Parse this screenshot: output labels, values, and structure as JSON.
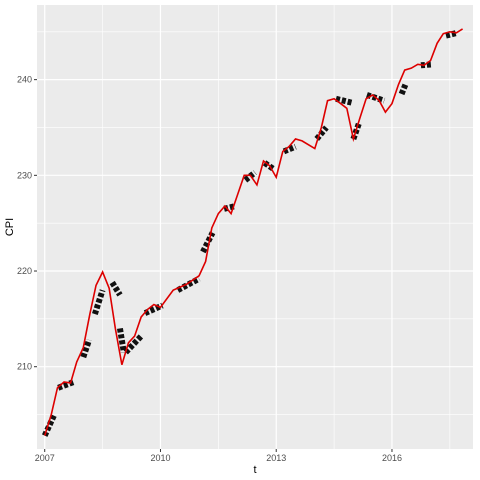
{
  "chart_data": {
    "type": "line",
    "xlabel": "t",
    "ylabel": "CPI",
    "xlim": [
      2006.8,
      2018.1
    ],
    "ylim": [
      201.4,
      247.8
    ],
    "x_ticks": [
      2007,
      2010,
      2013,
      2016
    ],
    "x_tick_labels": [
      "2007",
      "2010",
      "2013",
      "2016"
    ],
    "y_ticks": [
      210,
      220,
      230,
      240
    ],
    "y_tick_labels": [
      "210",
      "220",
      "230",
      "240"
    ],
    "grid": true,
    "background_color": "#ebebeb",
    "grid_color": "#ffffff",
    "series": [
      {
        "style": "red-line",
        "color": "#dd0000",
        "x": [
          2007.0,
          2007.17,
          2007.33,
          2007.5,
          2007.67,
          2007.83,
          2008.0,
          2008.17,
          2008.33,
          2008.5,
          2008.67,
          2008.83,
          2009.0,
          2009.17,
          2009.33,
          2009.5,
          2009.67,
          2009.83,
          2010.0,
          2010.33,
          2010.67,
          2011.0,
          2011.17,
          2011.33,
          2011.5,
          2011.67,
          2011.83,
          2012.0,
          2012.17,
          2012.33,
          2012.5,
          2012.67,
          2012.83,
          2013.0,
          2013.17,
          2013.33,
          2013.5,
          2013.67,
          2014.0,
          2014.17,
          2014.33,
          2014.5,
          2014.67,
          2014.83,
          2015.0,
          2015.17,
          2015.33,
          2015.5,
          2015.67,
          2015.83,
          2016.0,
          2016.17,
          2016.33,
          2016.5,
          2016.67,
          2016.83,
          2017.0,
          2017.17,
          2017.33,
          2017.5,
          2017.67,
          2017.83
        ],
        "y": [
          202.8,
          205.0,
          207.8,
          208.4,
          208.3,
          210.5,
          212.0,
          215.5,
          218.5,
          219.9,
          218.2,
          214.0,
          210.2,
          212.5,
          213.2,
          215.2,
          216.0,
          216.5,
          216.2,
          218.0,
          218.6,
          219.5,
          221.0,
          224.5,
          226.0,
          226.8,
          226.0,
          228.0,
          230.0,
          230.0,
          229.0,
          231.5,
          231.0,
          229.8,
          232.5,
          233.0,
          233.8,
          233.6,
          232.8,
          235.0,
          237.8,
          238.0,
          237.5,
          237.0,
          233.8,
          236.0,
          238.0,
          238.4,
          237.8,
          236.6,
          237.5,
          239.5,
          241.0,
          241.2,
          241.6,
          241.5,
          242.0,
          243.8,
          244.8,
          245.0,
          244.9,
          245.3
        ]
      },
      {
        "style": "black-thick-segments",
        "color": "#111111",
        "segments": [
          {
            "x": [
              2007.0,
              2007.25
            ],
            "y": [
              202.8,
              205.0
            ]
          },
          {
            "x": [
              2007.35,
              2007.75
            ],
            "y": [
              207.8,
              208.4
            ]
          },
          {
            "x": [
              2008.0,
              2008.15
            ],
            "y": [
              211.0,
              212.8
            ]
          },
          {
            "x": [
              2008.3,
              2008.5
            ],
            "y": [
              215.5,
              218.0
            ]
          },
          {
            "x": [
              2008.75,
              2008.95
            ],
            "y": [
              218.8,
              217.5
            ]
          },
          {
            "x": [
              2008.95,
              2009.05
            ],
            "y": [
              214.0,
              211.5
            ]
          },
          {
            "x": [
              2009.1,
              2009.5
            ],
            "y": [
              211.5,
              213.2
            ]
          },
          {
            "x": [
              2009.6,
              2010.05
            ],
            "y": [
              215.6,
              216.4
            ]
          },
          {
            "x": [
              2010.45,
              2011.0
            ],
            "y": [
              218.0,
              219.2
            ]
          },
          {
            "x": [
              2011.1,
              2011.35
            ],
            "y": [
              222.0,
              224.0
            ]
          },
          {
            "x": [
              2011.65,
              2011.95
            ],
            "y": [
              226.5,
              226.8
            ]
          },
          {
            "x": [
              2012.2,
              2012.45
            ],
            "y": [
              229.5,
              230.3
            ]
          },
          {
            "x": [
              2012.7,
              2012.95
            ],
            "y": [
              231.3,
              230.6
            ]
          },
          {
            "x": [
              2013.2,
              2013.5
            ],
            "y": [
              232.5,
              233.0
            ]
          },
          {
            "x": [
              2014.05,
              2014.3
            ],
            "y": [
              233.8,
              235.0
            ]
          },
          {
            "x": [
              2014.55,
              2014.95
            ],
            "y": [
              238.0,
              237.6
            ]
          },
          {
            "x": [
              2015.0,
              2015.15
            ],
            "y": [
              233.8,
              235.5
            ]
          },
          {
            "x": [
              2015.35,
              2015.8
            ],
            "y": [
              238.4,
              237.8
            ]
          },
          {
            "x": [
              2016.25,
              2016.35
            ],
            "y": [
              238.5,
              239.5
            ]
          },
          {
            "x": [
              2016.75,
              2017.05
            ],
            "y": [
              241.5,
              241.6
            ]
          },
          {
            "x": [
              2017.4,
              2017.7
            ],
            "y": [
              244.6,
              244.9
            ]
          }
        ]
      }
    ]
  }
}
